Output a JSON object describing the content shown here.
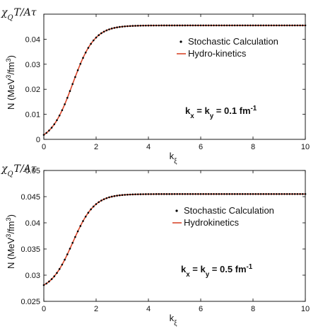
{
  "chart_data": [
    {
      "type": "line",
      "y_top_label": "χ_Q T/Aτ",
      "ylabel": "N (MeV^3/fm^3)",
      "xlabel": "k_ξ",
      "xlim": [
        0,
        10
      ],
      "ylim": [
        0,
        0.05
      ],
      "xticks": [
        "0",
        "2",
        "4",
        "6",
        "8",
        "10"
      ],
      "yticks": [
        "0",
        "0.01",
        "0.02",
        "0.03",
        "0.04"
      ],
      "annotation": "k_x = k_y = 0.1 fm^-1",
      "legend": {
        "position": "center-right",
        "entries": [
          "Stochastic Calculation",
          "Hydro-kinetics"
        ]
      },
      "series": [
        {
          "name": "Stochastic Calculation",
          "style": "black-dots",
          "y0": 0.0018,
          "yinf": 0.0455
        },
        {
          "name": "Hydro-kinetics",
          "style": "red-line",
          "y0": 0.0018,
          "yinf": 0.0455
        }
      ]
    },
    {
      "type": "line",
      "y_top_label": "χ_Q T/Aτ",
      "ylabel": "N (MeV^3/fm^3)",
      "xlabel": "k_ξ",
      "xlim": [
        0,
        10
      ],
      "ylim": [
        0.025,
        0.05
      ],
      "xticks": [
        "0",
        "2",
        "4",
        "6",
        "8",
        "10"
      ],
      "yticks": [
        "0.025",
        "0.03",
        "0.035",
        "0.04",
        "0.045",
        "0.05"
      ],
      "annotation": "k_x = k_y = 0.5 fm^-1",
      "legend": {
        "position": "center-right",
        "entries": [
          "Stochastic Calculation",
          "Hydrokinetics"
        ]
      },
      "series": [
        {
          "name": "Stochastic Calculation",
          "style": "black-dots",
          "y0": 0.0281,
          "yinf": 0.0455
        },
        {
          "name": "Hydrokinetics",
          "style": "red-line",
          "y0": 0.0281,
          "yinf": 0.0455
        }
      ]
    }
  ],
  "colors": {
    "line": "#d9472b",
    "dots": "#000000",
    "axis": "#000000"
  }
}
